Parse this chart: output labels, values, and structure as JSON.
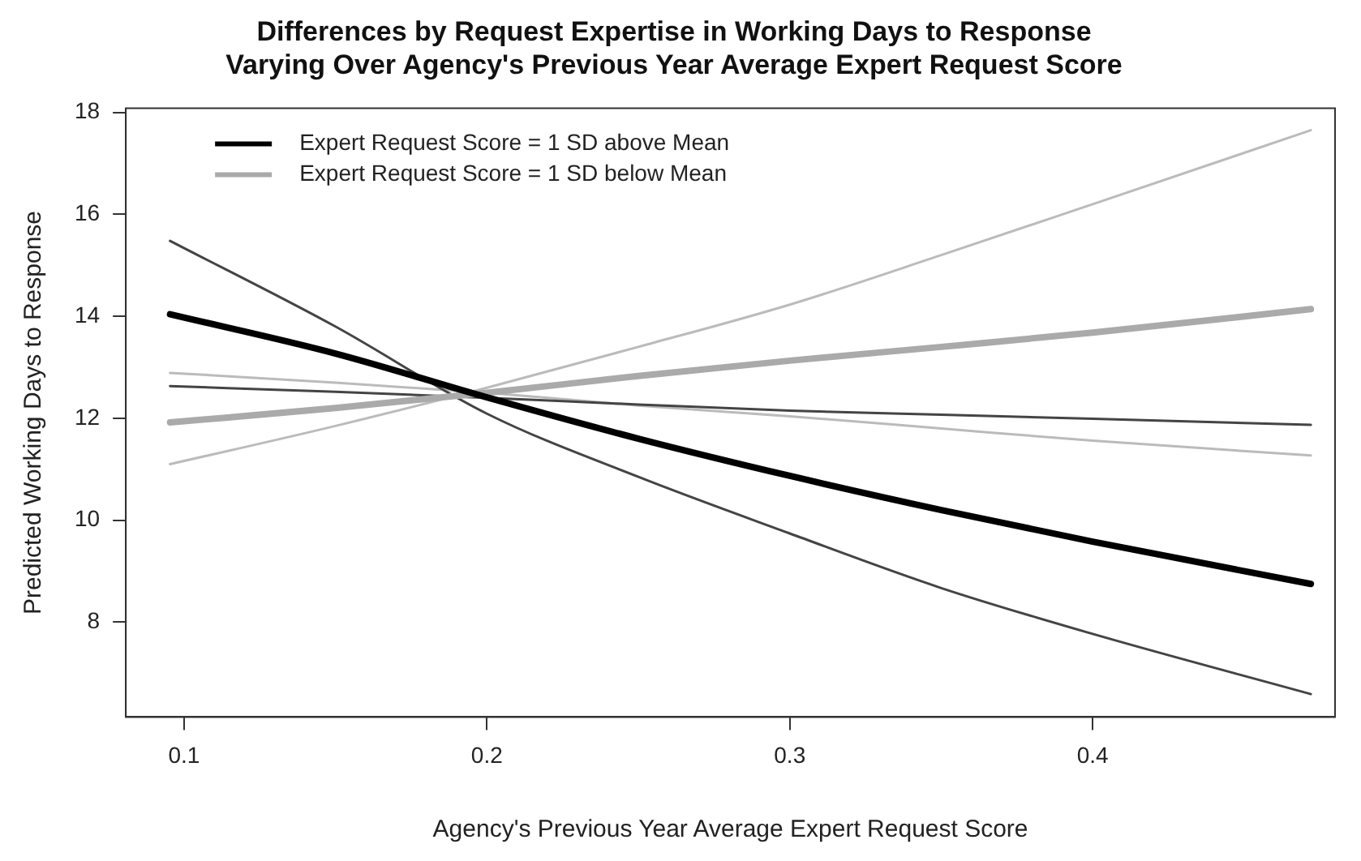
{
  "chart_data": {
    "type": "line",
    "title": "Differences by Request Expertise in Working Days to Response\nVarying Over Agency's Previous Year Average Expert Request Score",
    "xlabel": "Agency's Previous Year Average Expert Request Score",
    "ylabel": "Predicted Working Days to Response",
    "x": [
      0.0954,
      0.15,
      0.2,
      0.25,
      0.3,
      0.35,
      0.4,
      0.472
    ],
    "series": [
      {
        "name": "Expert Request Score = 1 SD above Mean",
        "color": "#000000",
        "values": [
          14.04,
          13.27,
          12.41,
          11.6,
          10.87,
          10.2,
          9.58,
          8.75
        ]
      },
      {
        "name": "Expert Request Score = 1 SD below Mean",
        "color": "#aaaaaa",
        "values": [
          11.92,
          12.2,
          12.5,
          12.83,
          13.13,
          13.4,
          13.68,
          14.14
        ]
      },
      {
        "color": "#444444",
        "values": [
          15.48,
          13.8,
          12.09,
          10.85,
          9.74,
          8.67,
          7.77,
          6.59
        ]
      },
      {
        "color": "#444444",
        "values": [
          12.63,
          12.52,
          12.4,
          12.27,
          12.15,
          12.07,
          11.99,
          11.87
        ]
      },
      {
        "color": "#bbbbbb",
        "values": [
          11.1,
          11.85,
          12.6,
          13.4,
          14.23,
          15.2,
          16.2,
          17.65
        ]
      },
      {
        "color": "#bbbbbb",
        "values": [
          12.89,
          12.7,
          12.5,
          12.25,
          12.04,
          11.8,
          11.56,
          11.27
        ]
      }
    ],
    "xlim": [
      0.0808,
      0.48
    ],
    "xticks": [
      0.1,
      0.2,
      0.3,
      0.4
    ],
    "ylim": [
      6.14,
      18.08
    ],
    "yticks": [
      8,
      10,
      12,
      14,
      16,
      18
    ],
    "grid": false,
    "legend": "top left",
    "marker": "none",
    "line_style": "solid"
  }
}
